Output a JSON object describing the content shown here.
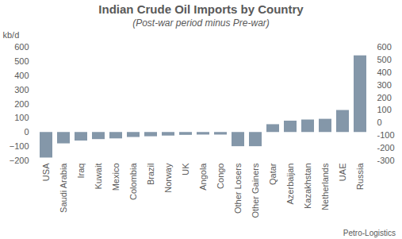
{
  "chart_data": {
    "type": "bar",
    "title": "Indian Crude Oil Imports by Country",
    "subtitle": "(Post-war period minus Pre-war)",
    "ylabel": "kb/d",
    "caption": "Petro-Logistics",
    "categories": [
      "USA",
      "Saudi Arabia",
      "Iraq",
      "Kuwait",
      "Mexico",
      "Colombia",
      "Brazil",
      "Norway",
      "UK",
      "Angola",
      "Congo",
      "Other Losers",
      "Other Gainers",
      "Qatar",
      "Azerbaijan",
      "Kazakhstan",
      "Netherlands",
      "UAE",
      "Russia"
    ],
    "values": [
      -180,
      -80,
      -60,
      -50,
      -45,
      -35,
      -30,
      -25,
      -20,
      -18,
      -18,
      -100,
      -100,
      55,
      80,
      88,
      93,
      155,
      540
    ],
    "color": "#8497a9",
    "ylim": [
      -200,
      600
    ],
    "yticks": [
      -200,
      -100,
      0,
      100,
      200,
      300,
      400,
      500,
      600
    ],
    "y2lim": [
      -300,
      600
    ],
    "y2ticks": [
      -300,
      -200,
      -100,
      0,
      100,
      200,
      300,
      400,
      500,
      600
    ],
    "grid": false
  }
}
